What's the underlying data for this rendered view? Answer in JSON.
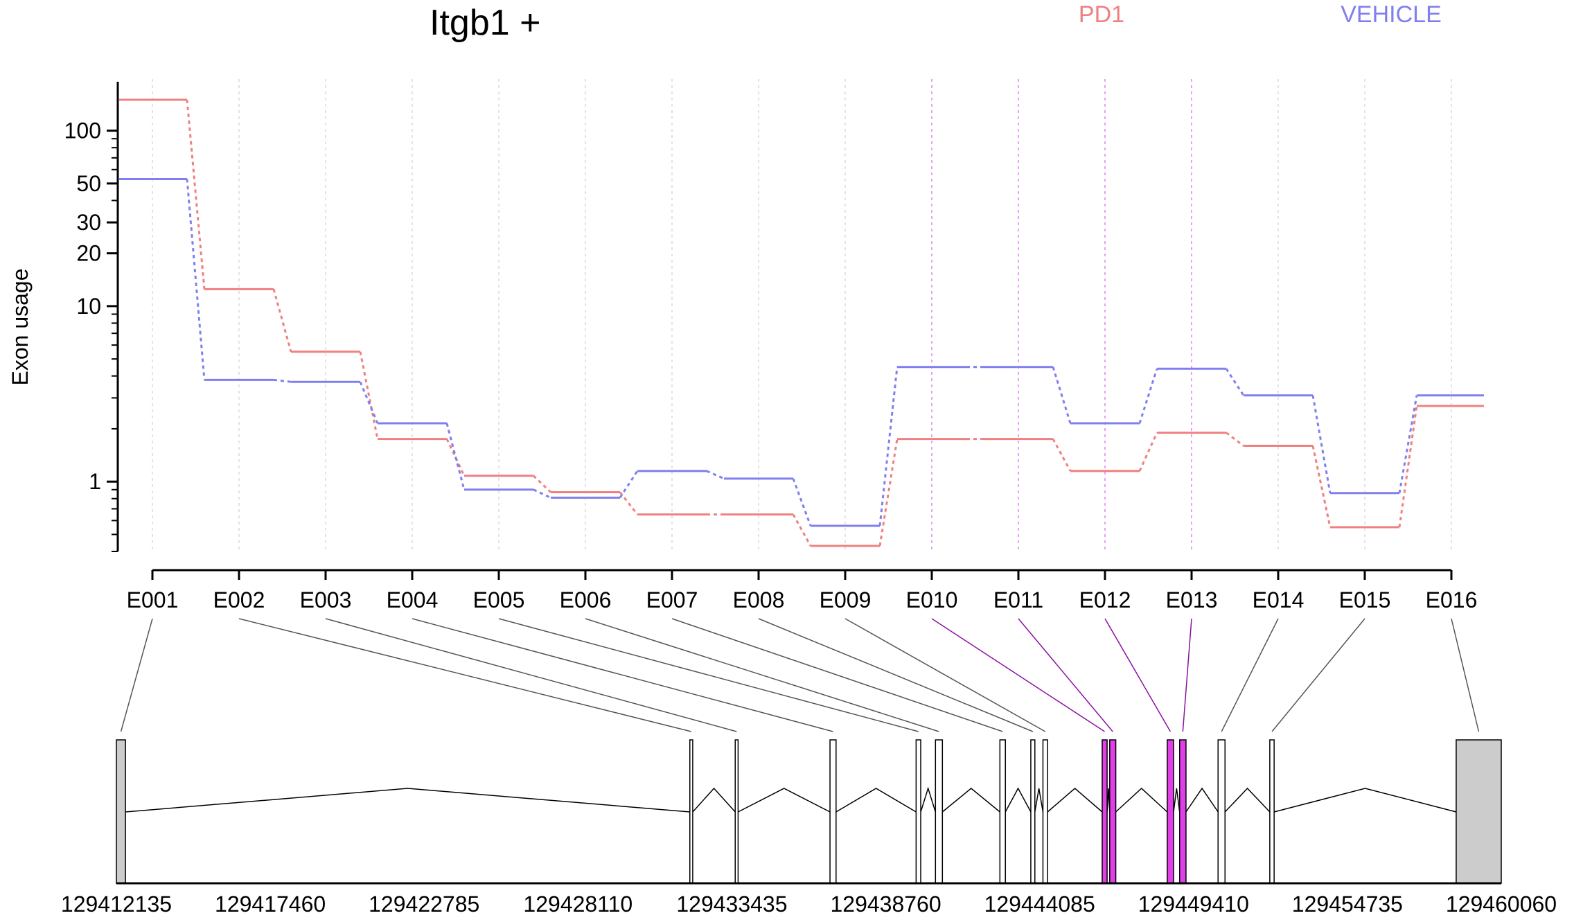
{
  "chart_data": {
    "type": "line",
    "title": "Itgb1 +",
    "ylabel": "Exon usage",
    "y_scale": "log",
    "ylim": [
      0.4,
      190
    ],
    "y_ticks": [
      {
        "value": 1,
        "label": "1"
      },
      {
        "value": 10,
        "label": "10"
      },
      {
        "value": 20,
        "label": "20"
      },
      {
        "value": 30,
        "label": "30"
      },
      {
        "value": 50,
        "label": "50"
      },
      {
        "value": 100,
        "label": "100"
      }
    ],
    "legend_placement": "top-right",
    "categories": [
      "E001",
      "E002",
      "E003",
      "E004",
      "E005",
      "E006",
      "E007",
      "E008",
      "E009",
      "E010",
      "E011",
      "E012",
      "E013",
      "E014",
      "E015",
      "E016"
    ],
    "highlighted_exons": [
      "E010",
      "E011",
      "E012",
      "E013"
    ],
    "series": [
      {
        "name": "PD1",
        "color": "#f08080",
        "values": [
          150,
          12.5,
          5.5,
          1.75,
          1.08,
          0.87,
          0.65,
          0.65,
          0.43,
          1.75,
          1.75,
          1.15,
          1.9,
          1.6,
          0.55,
          2.7
        ]
      },
      {
        "name": "VEHICLE",
        "color": "#7f7ff0",
        "values": [
          53,
          3.8,
          3.7,
          2.15,
          0.9,
          0.81,
          1.15,
          1.04,
          0.56,
          4.5,
          4.5,
          2.15,
          4.4,
          3.1,
          0.86,
          3.1
        ]
      }
    ],
    "gene_model": {
      "genomic_ticks": [
        "129412135",
        "129417460",
        "129422785",
        "129428110",
        "129433435",
        "129438760",
        "129444085",
        "129449410",
        "129454735",
        "129460060"
      ],
      "genomic_range": [
        129412135,
        129460060
      ],
      "exons": [
        {
          "id": "E001",
          "start": 129412135,
          "end": 129412450
        },
        {
          "id": "E002",
          "start": 129431980,
          "end": 129432080
        },
        {
          "id": "E003",
          "start": 129433550,
          "end": 129433650
        },
        {
          "id": "E004",
          "start": 129436830,
          "end": 129437040
        },
        {
          "id": "E005",
          "start": 129439810,
          "end": 129439970
        },
        {
          "id": "E006",
          "start": 129440480,
          "end": 129440720
        },
        {
          "id": "E007",
          "start": 129442710,
          "end": 129442900
        },
        {
          "id": "E008",
          "start": 129443780,
          "end": 129443920
        },
        {
          "id": "E009",
          "start": 129444200,
          "end": 129444360
        },
        {
          "id": "E010",
          "start": 129446250,
          "end": 129446420
        },
        {
          "id": "E011",
          "start": 129446510,
          "end": 129446720
        },
        {
          "id": "E012",
          "start": 129448500,
          "end": 129448720
        },
        {
          "id": "E013",
          "start": 129448930,
          "end": 129449150
        },
        {
          "id": "E014",
          "start": 129450260,
          "end": 129450500
        },
        {
          "id": "E015",
          "start": 129452050,
          "end": 129452200
        },
        {
          "id": "E016",
          "start": 129458500,
          "end": 129460060
        }
      ],
      "shaded_exons": [
        "E001",
        "E016"
      ]
    }
  }
}
